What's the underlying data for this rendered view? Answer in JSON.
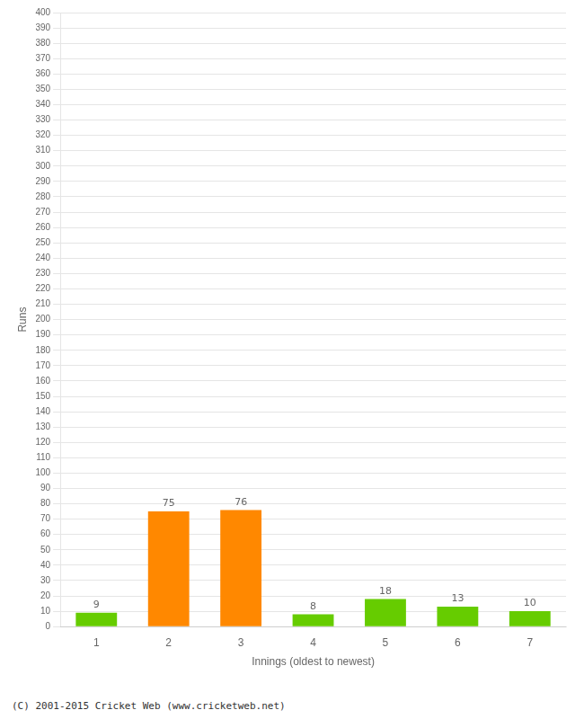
{
  "chart_data": {
    "type": "bar",
    "categories": [
      "1",
      "2",
      "3",
      "4",
      "5",
      "6",
      "7"
    ],
    "values": [
      9,
      75,
      76,
      8,
      18,
      13,
      10
    ],
    "colors": [
      "#66cc00",
      "#ff8800",
      "#ff8800",
      "#66cc00",
      "#66cc00",
      "#66cc00",
      "#66cc00"
    ],
    "xlabel": "Innings (oldest to newest)",
    "ylabel": "Runs",
    "ylim": [
      0,
      400
    ],
    "yticks": [
      0,
      10,
      20,
      30,
      40,
      50,
      60,
      70,
      80,
      90,
      100,
      110,
      120,
      130,
      140,
      150,
      160,
      170,
      180,
      190,
      200,
      210,
      220,
      230,
      240,
      250,
      260,
      270,
      280,
      290,
      300,
      310,
      320,
      330,
      340,
      350,
      360,
      370,
      380,
      390,
      400
    ],
    "grid": "y",
    "data_labels": true,
    "footer": "(C) 2001-2015 Cricket Web (www.cricketweb.net)"
  }
}
